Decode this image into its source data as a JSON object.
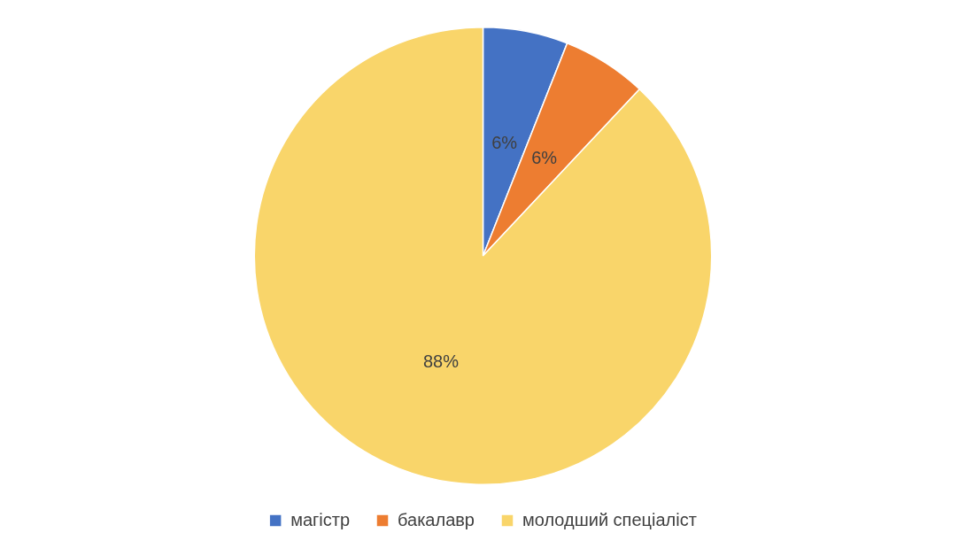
{
  "chart_data": {
    "type": "pie",
    "categories": [
      "магістр",
      "бакалавр",
      "молодший спеціаліст"
    ],
    "values": [
      6,
      6,
      88
    ],
    "colors": [
      "#4472c4",
      "#ed7d31",
      "#f9d56a"
    ],
    "value_labels": [
      "6%",
      "6%",
      "88%"
    ],
    "legend": "bottom"
  }
}
